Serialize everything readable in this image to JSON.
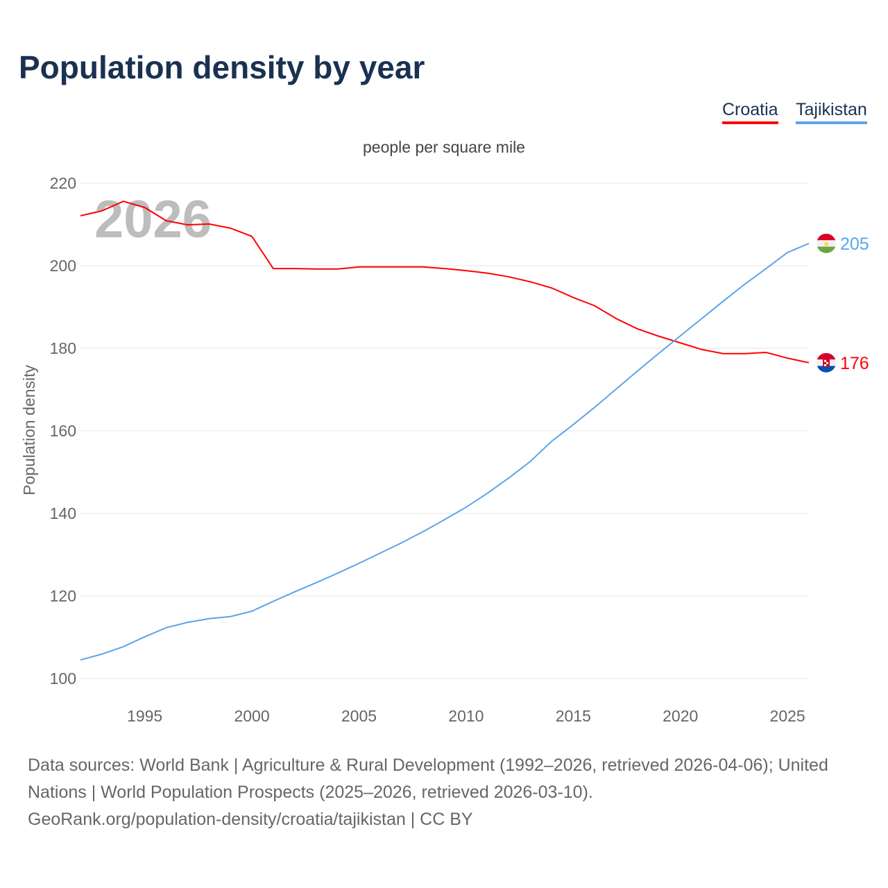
{
  "title": "Population density by year",
  "legend": [
    {
      "name": "Croatia",
      "color": "#ff0000"
    },
    {
      "name": "Tajikistan",
      "color": "#5ba4ea"
    }
  ],
  "sources": {
    "line1": "Data sources: World Bank | Agriculture & Rural Development (1992–2026, retrieved 2026-04-06); United Nations | World Population Prospects (2025–2026, retrieved 2026-03-10).",
    "line2": "GeoRank.org/population-density/croatia/tajikistan | CC BY"
  },
  "chart_data": {
    "type": "line",
    "title": "Population density by year",
    "subtitle": "people per square mile",
    "ylabel": "Population density",
    "xlabel": "",
    "watermark_year": "2026",
    "xlim": [
      1992,
      2026
    ],
    "ylim": [
      100,
      220
    ],
    "xticks": [
      1995,
      2000,
      2005,
      2010,
      2015,
      2020,
      2025
    ],
    "yticks": [
      100,
      120,
      140,
      160,
      180,
      200,
      220
    ],
    "grid": true,
    "legend_position": "top-right",
    "x": [
      1992,
      1993,
      1994,
      1995,
      1996,
      1997,
      1998,
      1999,
      2000,
      2001,
      2002,
      2003,
      2004,
      2005,
      2006,
      2007,
      2008,
      2009,
      2010,
      2011,
      2012,
      2013,
      2014,
      2015,
      2016,
      2017,
      2018,
      2019,
      2020,
      2021,
      2022,
      2023,
      2024,
      2025,
      2026
    ],
    "series": [
      {
        "name": "Croatia",
        "color": "#ff0000",
        "end_label": "176",
        "values": [
          212.1,
          213.3,
          215.6,
          214.1,
          210.9,
          209.9,
          210.1,
          209.1,
          207.1,
          199.3,
          199.3,
          199.2,
          199.2,
          199.7,
          199.7,
          199.7,
          199.7,
          199.3,
          198.8,
          198.2,
          197.3,
          196.1,
          194.6,
          192.3,
          190.3,
          187.2,
          184.7,
          182.9,
          181.3,
          179.7,
          178.7,
          178.7,
          179.0,
          177.6,
          176.5
        ]
      },
      {
        "name": "Tajikistan",
        "color": "#5ba4ea",
        "end_label": "205",
        "values": [
          104.5,
          105.9,
          107.7,
          110.1,
          112.3,
          113.6,
          114.5,
          115.0,
          116.3,
          118.7,
          121.0,
          123.2,
          125.5,
          127.9,
          130.4,
          132.9,
          135.6,
          138.5,
          141.5,
          144.9,
          148.6,
          152.6,
          157.5,
          161.5,
          165.7,
          170.1,
          174.5,
          178.8,
          183.0,
          187.2,
          191.4,
          195.5,
          199.3,
          203.2,
          205.4
        ]
      }
    ]
  }
}
